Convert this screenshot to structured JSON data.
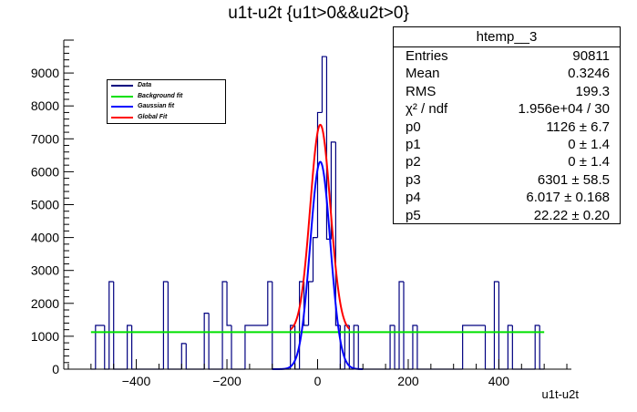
{
  "title": "u1t-u2t {u1t>0&&u2t>0}",
  "stats": {
    "name": "htemp__3",
    "rows": [
      {
        "key": "Entries",
        "value": "90811"
      },
      {
        "key": "Mean",
        "value": "0.3246"
      },
      {
        "key": "RMS",
        "value": "199.3"
      },
      {
        "key": "χ² / ndf",
        "value": "1.956e+04 / 30"
      },
      {
        "key": "p0",
        "value": "1126 ± 6.7"
      },
      {
        "key": "p1",
        "value": "0 ± 1.4"
      },
      {
        "key": "p2",
        "value": "0 ± 1.4"
      },
      {
        "key": "p3",
        "value": "6301 ± 58.5"
      },
      {
        "key": "p4",
        "value": "6.017 ± 0.168"
      },
      {
        "key": "p5",
        "value": "22.22 ± 0.20"
      }
    ]
  },
  "legend": {
    "items": [
      {
        "label": "Data",
        "color": "#000080"
      },
      {
        "label": "Background fit",
        "color": "#00e000"
      },
      {
        "label": "Gaussian fit",
        "color": "#0000ff"
      },
      {
        "label": "Global Fit",
        "color": "#ff0000"
      }
    ]
  },
  "chart_data": {
    "type": "bar",
    "histogram": true,
    "xlabel": "u1t-u2t",
    "ylabel": "",
    "xlim": [
      -560,
      560
    ],
    "ylim": [
      0,
      10000
    ],
    "x_ticks": [
      -400,
      -200,
      0,
      200,
      400
    ],
    "y_ticks": [
      0,
      1000,
      2000,
      3000,
      4000,
      5000,
      6000,
      7000,
      8000,
      9000
    ],
    "bins": [
      {
        "x0": -500,
        "x1": -490,
        "y": 0
      },
      {
        "x0": -490,
        "x1": -470,
        "y": 1330
      },
      {
        "x0": -470,
        "x1": -460,
        "y": 0
      },
      {
        "x0": -460,
        "x1": -450,
        "y": 2660
      },
      {
        "x0": -450,
        "x1": -420,
        "y": 0
      },
      {
        "x0": -420,
        "x1": -410,
        "y": 1330
      },
      {
        "x0": -410,
        "x1": -340,
        "y": 0
      },
      {
        "x0": -340,
        "x1": -330,
        "y": 2660
      },
      {
        "x0": -330,
        "x1": -300,
        "y": 0
      },
      {
        "x0": -300,
        "x1": -290,
        "y": 780
      },
      {
        "x0": -290,
        "x1": -250,
        "y": 0
      },
      {
        "x0": -250,
        "x1": -240,
        "y": 1700
      },
      {
        "x0": -240,
        "x1": -210,
        "y": 0
      },
      {
        "x0": -210,
        "x1": -200,
        "y": 2660
      },
      {
        "x0": -200,
        "x1": -190,
        "y": 1330
      },
      {
        "x0": -190,
        "x1": -160,
        "y": 0
      },
      {
        "x0": -160,
        "x1": -110,
        "y": 1330
      },
      {
        "x0": -110,
        "x1": -100,
        "y": 2660
      },
      {
        "x0": -100,
        "x1": -60,
        "y": 0
      },
      {
        "x0": -60,
        "x1": -50,
        "y": 1330
      },
      {
        "x0": -50,
        "x1": -40,
        "y": 0
      },
      {
        "x0": -40,
        "x1": -30,
        "y": 2660
      },
      {
        "x0": -30,
        "x1": -20,
        "y": 1330
      },
      {
        "x0": -20,
        "x1": -10,
        "y": 2660
      },
      {
        "x0": -10,
        "x1": 0,
        "y": 4000
      },
      {
        "x0": 0,
        "x1": 10,
        "y": 7800
      },
      {
        "x0": 10,
        "x1": 20,
        "y": 9500
      },
      {
        "x0": 20,
        "x1": 30,
        "y": 3950
      },
      {
        "x0": 30,
        "x1": 40,
        "y": 6900
      },
      {
        "x0": 40,
        "x1": 50,
        "y": 1330
      },
      {
        "x0": 50,
        "x1": 60,
        "y": 0
      },
      {
        "x0": 60,
        "x1": 70,
        "y": 1330
      },
      {
        "x0": 70,
        "x1": 80,
        "y": 0
      },
      {
        "x0": 80,
        "x1": 90,
        "y": 1330
      },
      {
        "x0": 90,
        "x1": 160,
        "y": 0
      },
      {
        "x0": 160,
        "x1": 170,
        "y": 1330
      },
      {
        "x0": 170,
        "x1": 180,
        "y": 0
      },
      {
        "x0": 180,
        "x1": 190,
        "y": 2660
      },
      {
        "x0": 190,
        "x1": 210,
        "y": 0
      },
      {
        "x0": 210,
        "x1": 220,
        "y": 1330
      },
      {
        "x0": 220,
        "x1": 320,
        "y": 0
      },
      {
        "x0": 320,
        "x1": 370,
        "y": 1330
      },
      {
        "x0": 370,
        "x1": 390,
        "y": 0
      },
      {
        "x0": 390,
        "x1": 400,
        "y": 2660
      },
      {
        "x0": 400,
        "x1": 420,
        "y": 0
      },
      {
        "x0": 420,
        "x1": 430,
        "y": 1330
      },
      {
        "x0": 430,
        "x1": 480,
        "y": 0
      },
      {
        "x0": 480,
        "x1": 490,
        "y": 1330
      },
      {
        "x0": 490,
        "x1": 500,
        "y": 0
      }
    ],
    "fits": {
      "range": [
        -500,
        500
      ],
      "p0": 1126,
      "p1": 0,
      "p2": 0,
      "p3": 6301,
      "p4": 6.017,
      "p5": 22.22,
      "global_range": [
        -60,
        70
      ],
      "gauss_range": [
        -100,
        100
      ]
    }
  }
}
